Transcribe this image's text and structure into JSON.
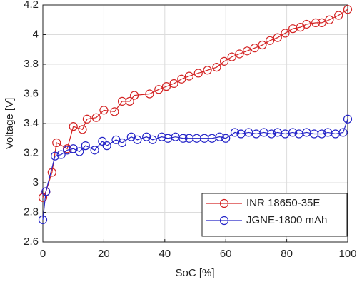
{
  "chart_data": {
    "type": "line",
    "xlabel": "SoC [%]",
    "ylabel": "Voltage [V]",
    "xlim": [
      0,
      100
    ],
    "xticks": [
      0,
      20,
      40,
      60,
      80,
      100
    ],
    "ylim": [
      2.6,
      4.2
    ],
    "yticks": [
      2.6,
      2.8,
      3,
      3.2,
      3.4,
      3.6,
      3.8,
      4,
      4.2
    ],
    "grid": true,
    "legend": "lower right",
    "series": [
      {
        "name": "INR 18650-35E",
        "color": "#d42424",
        "x": [
          0,
          1,
          3,
          4.5,
          8,
          10,
          13,
          14.5,
          17.5,
          20,
          23.5,
          26,
          28.5,
          30,
          35,
          38,
          40.5,
          43,
          45.5,
          48,
          51,
          54,
          57,
          59.5,
          62,
          64.5,
          67,
          69.5,
          72,
          74.5,
          77,
          79.5,
          82,
          84.5,
          86.5,
          89.5,
          91.5,
          94,
          97,
          100
        ],
        "values": [
          2.9,
          2.94,
          3.07,
          3.27,
          3.23,
          3.38,
          3.36,
          3.43,
          3.44,
          3.49,
          3.48,
          3.55,
          3.55,
          3.59,
          3.6,
          3.63,
          3.65,
          3.67,
          3.7,
          3.72,
          3.74,
          3.76,
          3.78,
          3.82,
          3.85,
          3.87,
          3.89,
          3.91,
          3.93,
          3.96,
          3.98,
          4.01,
          4.04,
          4.05,
          4.07,
          4.08,
          4.08,
          4.1,
          4.13,
          4.17
        ]
      },
      {
        "name": "JGNE-1800 mAh",
        "color": "#2424c8",
        "x": [
          0,
          1,
          4,
          6,
          8,
          10,
          12,
          14,
          17,
          19.5,
          21,
          24,
          26,
          29,
          31,
          34,
          36,
          39,
          41,
          43.5,
          46,
          48,
          50.5,
          53,
          55.5,
          58,
          60,
          63,
          65,
          67.5,
          70,
          72.5,
          75,
          77,
          79.5,
          82,
          84,
          86.5,
          89,
          91.5,
          93.5,
          96,
          98.5,
          100
        ],
        "values": [
          2.75,
          2.94,
          3.18,
          3.19,
          3.22,
          3.23,
          3.21,
          3.25,
          3.22,
          3.28,
          3.25,
          3.29,
          3.27,
          3.31,
          3.29,
          3.31,
          3.29,
          3.31,
          3.3,
          3.31,
          3.3,
          3.3,
          3.3,
          3.3,
          3.3,
          3.31,
          3.3,
          3.34,
          3.33,
          3.34,
          3.33,
          3.34,
          3.33,
          3.34,
          3.33,
          3.34,
          3.33,
          3.34,
          3.33,
          3.33,
          3.34,
          3.33,
          3.34,
          3.43
        ]
      }
    ]
  }
}
